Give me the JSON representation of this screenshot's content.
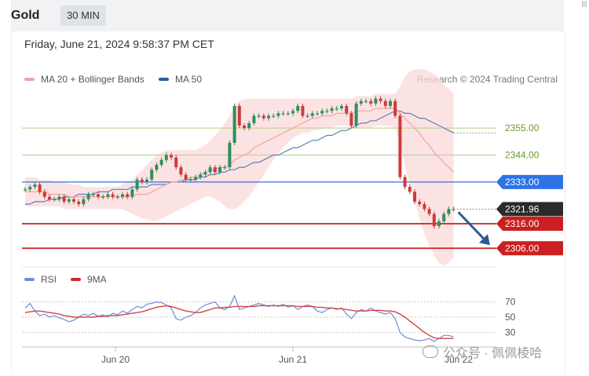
{
  "header": {
    "title": "Gold",
    "timeframe_button": "30 MIN"
  },
  "datetime": "Friday, June 21, 2024 9:58:37 PM CET",
  "legend": {
    "ma20_label": "MA 20 + Bollinger Bands",
    "ma50_label": "MA 50",
    "rsi_label": "RSI",
    "ma9_label": "9MA"
  },
  "credit": "Research © 2024 Trading Central",
  "watermark": "公众号 · 佩佩棱哈",
  "colors": {
    "bull": "#2f8f5b",
    "bear": "#cf3a3a",
    "band_fill": "#fbdada",
    "ma20": "#f2a2a2",
    "ma50": "#5d7fb8",
    "level_green": "#b5cf8c",
    "level_blue": "#2d73e6",
    "level_red": "#cc1f1f",
    "price_tag": "#2b2b2b",
    "arrow": "#2a5a9a",
    "rsi": "#6d8fd6",
    "ma9": "#d64545"
  },
  "chart_data": [
    {
      "type": "candlestick",
      "title": "Gold",
      "x_tick_labels": [
        "Jun 20",
        "Jun 21",
        "Jun 22"
      ],
      "levels": [
        {
          "value": 2355.0,
          "label": "2355.00",
          "style": "green-line"
        },
        {
          "value": 2344.0,
          "label": "2344.00",
          "style": "green-line"
        },
        {
          "value": 2333.0,
          "label": "2333.00",
          "style": "blue-tag"
        },
        {
          "value": 2321.96,
          "label": "2321.96",
          "style": "price-tag"
        },
        {
          "value": 2316.0,
          "label": "2316.00",
          "style": "red-tag"
        },
        {
          "value": 2306.0,
          "label": "2306.00",
          "style": "red-tag"
        }
      ],
      "ylim": [
        2300,
        2372
      ],
      "forecast_arrow": {
        "from": 2322,
        "to": 2306,
        "direction": "down"
      },
      "closes": [
        2330,
        2331,
        2332,
        2329,
        2327,
        2326,
        2326,
        2327,
        2325,
        2326,
        2325,
        2324,
        2326,
        2328,
        2328,
        2327,
        2327,
        2328,
        2327,
        2327,
        2328,
        2327,
        2330,
        2334,
        2333,
        2334,
        2338,
        2340,
        2342,
        2344,
        2343,
        2339,
        2336,
        2334,
        2334,
        2335,
        2336,
        2337,
        2339,
        2337,
        2339,
        2339,
        2349,
        2364,
        2356,
        2355,
        2357,
        2360,
        2360,
        2359,
        2360,
        2360,
        2361,
        2361,
        2361,
        2362,
        2364,
        2360,
        2360,
        2361,
        2361,
        2362,
        2362,
        2363,
        2363,
        2364,
        2361,
        2356,
        2365,
        2366,
        2366,
        2365,
        2367,
        2366,
        2364,
        2366,
        2360,
        2335,
        2331,
        2329,
        2325,
        2324,
        2322,
        2320,
        2315,
        2317,
        2320,
        2322,
        2322
      ],
      "ma20": [
        2329,
        2329,
        2329,
        2329,
        2329,
        2328,
        2328,
        2328,
        2328,
        2327,
        2327,
        2327,
        2327,
        2327,
        2327,
        2327,
        2327,
        2327,
        2327,
        2327,
        2327,
        2327,
        2327,
        2328,
        2328,
        2328,
        2329,
        2330,
        2331,
        2332,
        2333,
        2333,
        2334,
        2334,
        2335,
        2335,
        2336,
        2337,
        2338,
        2338,
        2339,
        2339,
        2340,
        2342,
        2343,
        2344,
        2345,
        2347,
        2348,
        2349,
        2350,
        2351,
        2352,
        2353,
        2354,
        2355,
        2356,
        2357,
        2358,
        2359,
        2359,
        2360,
        2360,
        2360,
        2361,
        2361,
        2361,
        2361,
        2362,
        2362,
        2362,
        2362,
        2363,
        2363,
        2363,
        2363,
        2363,
        2361,
        2359,
        2357,
        2355,
        2353,
        2350,
        2348,
        2345,
        2343,
        2341,
        2339,
        2337
      ],
      "bb_upper": [
        2335,
        2335,
        2335,
        2334,
        2334,
        2334,
        2333,
        2333,
        2333,
        2332,
        2332,
        2332,
        2331,
        2331,
        2331,
        2331,
        2331,
        2331,
        2331,
        2331,
        2332,
        2333,
        2334,
        2336,
        2338,
        2340,
        2342,
        2344,
        2345,
        2346,
        2346,
        2346,
        2346,
        2346,
        2346,
        2346,
        2347,
        2348,
        2350,
        2352,
        2354,
        2357,
        2360,
        2364,
        2366,
        2367,
        2367,
        2367,
        2367,
        2367,
        2367,
        2367,
        2367,
        2367,
        2367,
        2367,
        2367,
        2367,
        2367,
        2367,
        2367,
        2367,
        2367,
        2367,
        2367,
        2367,
        2367,
        2367,
        2368,
        2368,
        2368,
        2368,
        2369,
        2369,
        2369,
        2369,
        2369,
        2372,
        2376,
        2378,
        2379,
        2379,
        2379,
        2378,
        2377,
        2375,
        2373,
        2371,
        2369
      ],
      "bb_lower": [
        2323,
        2323,
        2323,
        2323,
        2323,
        2323,
        2323,
        2323,
        2322,
        2322,
        2322,
        2322,
        2322,
        2322,
        2322,
        2322,
        2322,
        2322,
        2322,
        2322,
        2322,
        2321,
        2320,
        2319,
        2318,
        2318,
        2317,
        2317,
        2318,
        2319,
        2320,
        2321,
        2322,
        2323,
        2324,
        2325,
        2326,
        2327,
        2327,
        2326,
        2325,
        2323,
        2322,
        2322,
        2323,
        2325,
        2327,
        2330,
        2333,
        2336,
        2339,
        2342,
        2345,
        2347,
        2349,
        2351,
        2352,
        2353,
        2353,
        2354,
        2354,
        2355,
        2355,
        2355,
        2356,
        2356,
        2356,
        2355,
        2355,
        2355,
        2355,
        2355,
        2356,
        2356,
        2356,
        2356,
        2355,
        2348,
        2340,
        2332,
        2325,
        2318,
        2312,
        2307,
        2303,
        2300,
        2299,
        2300,
        2302
      ],
      "ma50": [
        2324,
        2324,
        2325,
        2325,
        2325,
        2326,
        2326,
        2326,
        2327,
        2327,
        2327,
        2328,
        2328,
        2328,
        2328,
        2329,
        2329,
        2329,
        2330,
        2330,
        2330,
        2330,
        2331,
        2331,
        2331,
        2331,
        2332,
        2332,
        2332,
        2332,
        2333,
        2333,
        2333,
        2334,
        2334,
        2334,
        2335,
        2335,
        2336,
        2336,
        2337,
        2337,
        2338,
        2338,
        2339,
        2339,
        2340,
        2341,
        2341,
        2342,
        2343,
        2344,
        2344,
        2345,
        2346,
        2347,
        2347,
        2348,
        2349,
        2350,
        2350,
        2351,
        2352,
        2352,
        2353,
        2354,
        2354,
        2355,
        2356,
        2357,
        2357,
        2358,
        2358,
        2359,
        2360,
        2361,
        2362,
        2362,
        2361,
        2361,
        2360,
        2359,
        2359,
        2358,
        2357,
        2356,
        2355,
        2354,
        2353
      ]
    },
    {
      "type": "line",
      "title": "RSI",
      "yticks": [
        70,
        50,
        30
      ],
      "ylim": [
        15,
        85
      ],
      "series": [
        {
          "name": "RSI",
          "values": [
            62,
            68,
            58,
            52,
            54,
            50,
            52,
            49,
            47,
            44,
            46,
            50,
            54,
            52,
            55,
            51,
            53,
            50,
            55,
            53,
            58,
            55,
            60,
            64,
            62,
            67,
            68,
            70,
            69,
            66,
            62,
            48,
            46,
            50,
            52,
            56,
            62,
            66,
            68,
            70,
            62,
            60,
            64,
            78,
            60,
            62,
            64,
            66,
            68,
            66,
            64,
            66,
            64,
            67,
            63,
            65,
            60,
            64,
            66,
            64,
            58,
            56,
            60,
            62,
            60,
            62,
            54,
            48,
            56,
            60,
            58,
            62,
            58,
            56,
            54,
            56,
            48,
            30,
            24,
            22,
            20,
            19,
            20,
            22,
            18,
            22,
            26,
            26,
            24
          ]
        },
        {
          "name": "9MA",
          "values": [
            56,
            57,
            58,
            58,
            57,
            56,
            55,
            54,
            52,
            51,
            50,
            50,
            50,
            50,
            50,
            51,
            51,
            52,
            52,
            52,
            53,
            54,
            55,
            56,
            57,
            59,
            61,
            63,
            64,
            65,
            64,
            62,
            60,
            58,
            57,
            56,
            56,
            58,
            60,
            62,
            62,
            63,
            63,
            64,
            64,
            64,
            64,
            64,
            65,
            65,
            65,
            65,
            65,
            65,
            65,
            65,
            64,
            64,
            64,
            64,
            63,
            63,
            62,
            62,
            61,
            61,
            60,
            59,
            58,
            58,
            58,
            59,
            59,
            59,
            58,
            58,
            57,
            54,
            50,
            45,
            40,
            35,
            30,
            26,
            23,
            22,
            22,
            22,
            22
          ]
        }
      ]
    }
  ]
}
